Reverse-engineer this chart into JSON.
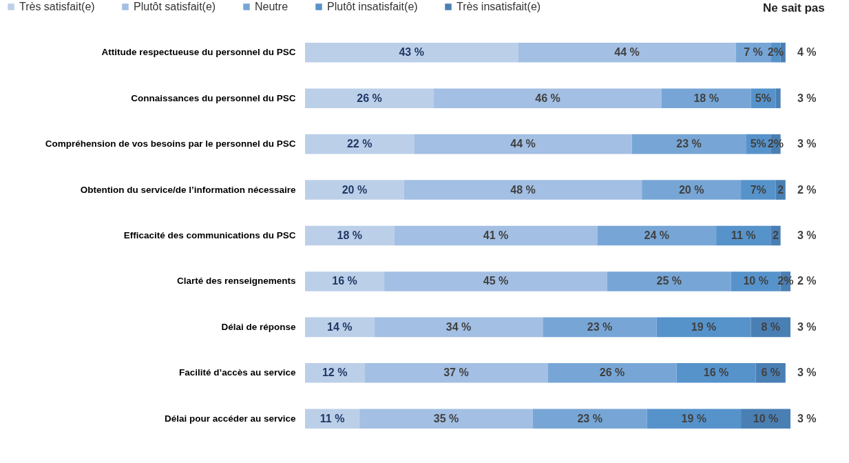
{
  "chart_data": {
    "type": "bar",
    "orientation": "horizontal",
    "stacked": true,
    "legend": "top",
    "tick_labels": "y",
    "categories": [
      "Attitude respectueuse du personnel du PSC",
      "Connaissances du personnel du PSC",
      "Compréhension de vos besoins par le personnel du PSC",
      "Obtention du service/de l’information nécessaire",
      "Efficacité des communications du PSC",
      "Clarté des renseignements",
      "Délai de réponse",
      "Facilité d’accès au service",
      "Délai pour accéder au service"
    ],
    "series": [
      {
        "name": "Très satisfait(e)",
        "color": "#bccfe9",
        "values": [
          43,
          26,
          22,
          20,
          18,
          16,
          14,
          12,
          11
        ],
        "value_labels": [
          "43 %",
          "26 %",
          "22 %",
          "20 %",
          "18 %",
          "16 %",
          "14 %",
          "12 %",
          "11 %"
        ]
      },
      {
        "name": "Plutôt satisfait(e)",
        "color": "#a3bfe3",
        "values": [
          44,
          46,
          44,
          48,
          41,
          45,
          34,
          37,
          35
        ],
        "value_labels": [
          "44 %",
          "46 %",
          "44 %",
          "48 %",
          "41 %",
          "45 %",
          "34 %",
          "37 %",
          "35 %"
        ]
      },
      {
        "name": "Neutre",
        "color": "#77a6d6",
        "values": [
          7,
          18,
          23,
          20,
          24,
          25,
          23,
          26,
          23
        ],
        "value_labels": [
          "7 %",
          "18 %",
          "23 %",
          "20 %",
          "24 %",
          "25 %",
          "23 %",
          "26 %",
          "23 %"
        ]
      },
      {
        "name": "Plutôt insatisfait(e)",
        "color": "#5793cb",
        "values": [
          2,
          5,
          5,
          7,
          11,
          10,
          19,
          16,
          19
        ],
        "value_labels": [
          "2%",
          "5%",
          "5%",
          "7%",
          "11 %",
          "10 %",
          "19 %",
          "16 %",
          "19 %"
        ]
      },
      {
        "name": "Très insatisfait(e)",
        "color": "#4a7fb4",
        "values": [
          1,
          1,
          2,
          2,
          2,
          2,
          8,
          6,
          10
        ],
        "value_labels": [
          null,
          null,
          "2%",
          "2",
          "2",
          "2%",
          "8 %",
          "6 %",
          "10 %"
        ]
      }
    ],
    "annotations": [
      "Ne sait pas",
      "4 %",
      "3 %",
      "3 %",
      "2 %",
      "3 %",
      "2 %",
      "3 %",
      "3 %",
      "3 %"
    ]
  }
}
